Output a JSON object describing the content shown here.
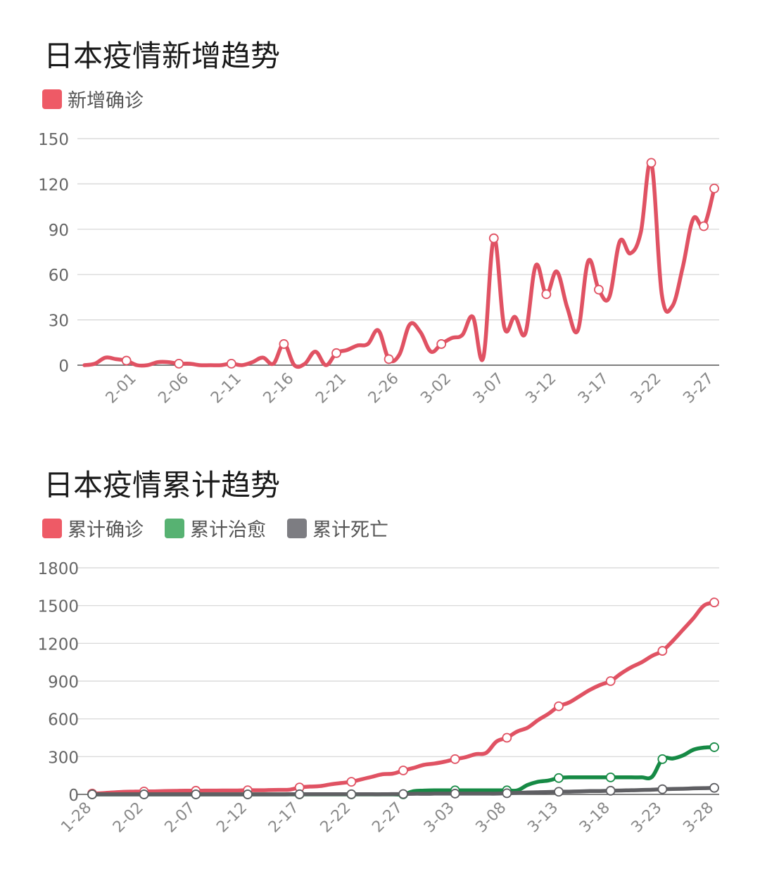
{
  "charts": [
    {
      "title": "日本疫情新增趋势",
      "legend": [
        {
          "label": "新增确诊",
          "color": "#ee5a66"
        }
      ]
    },
    {
      "title": "日本疫情累计趋势",
      "legend": [
        {
          "label": "累计确诊",
          "color": "#ee5a66"
        },
        {
          "label": "累计治愈",
          "color": "#57b272"
        },
        {
          "label": "累计死亡",
          "color": "#7d7d82"
        }
      ]
    }
  ],
  "chart_data": [
    {
      "type": "line",
      "title": "日本疫情新增趋势",
      "xlabel": "",
      "ylabel": "",
      "ylim": [
        0,
        150
      ],
      "yticks": [
        "0",
        "30",
        "60",
        "90",
        "120",
        "150"
      ],
      "xtick_labels": [
        "2-01",
        "2-06",
        "2-11",
        "2-16",
        "2-21",
        "2-26",
        "3-02",
        "3-07",
        "3-12",
        "3-17",
        "3-22",
        "3-27"
      ],
      "xtick_positions": [
        5,
        10,
        15,
        20,
        25,
        30,
        35,
        40,
        45,
        50,
        55,
        60
      ],
      "marker_interval": 5,
      "marker_offset": 4,
      "grid": true,
      "legend_position": "top-left",
      "series": [
        {
          "name": "新增确诊",
          "color": "#e05263",
          "values": [
            0,
            1,
            5,
            4,
            3,
            0,
            0,
            2,
            2,
            1,
            1,
            0,
            0,
            0,
            1,
            0,
            2,
            5,
            1,
            14,
            0,
            1,
            9,
            0,
            8,
            10,
            13,
            14,
            23,
            4,
            7,
            27,
            22,
            9,
            14,
            18,
            20,
            32,
            5,
            84,
            25,
            32,
            21,
            66,
            47,
            62,
            38,
            23,
            69,
            50,
            45,
            82,
            74,
            88,
            134,
            47,
            39,
            65,
            97,
            92,
            117
          ]
        }
      ]
    },
    {
      "type": "line",
      "title": "日本疫情累计趋势",
      "xlabel": "",
      "ylabel": "",
      "ylim": [
        0,
        1800
      ],
      "yticks": [
        "0",
        "300",
        "600",
        "900",
        "1200",
        "1500",
        "1800"
      ],
      "xtick_labels": [
        "1-28",
        "2-02",
        "2-07",
        "2-12",
        "2-17",
        "2-22",
        "2-27",
        "3-03",
        "3-08",
        "3-13",
        "3-18",
        "3-23",
        "3-28"
      ],
      "xtick_positions": [
        0,
        5,
        10,
        15,
        20,
        25,
        30,
        35,
        40,
        45,
        50,
        55,
        60
      ],
      "marker_interval": 5,
      "marker_offset": 0,
      "grid": true,
      "legend_position": "top-left",
      "series": [
        {
          "name": "累计确诊",
          "color": "#e05263",
          "values": [
            7,
            10,
            15,
            20,
            22,
            23,
            24,
            26,
            28,
            29,
            29,
            30,
            30,
            31,
            31,
            33,
            33,
            34,
            36,
            37,
            55,
            62,
            66,
            80,
            90,
            100,
            120,
            140,
            160,
            165,
            190,
            210,
            235,
            245,
            260,
            280,
            295,
            320,
            330,
            420,
            450,
            500,
            530,
            590,
            640,
            700,
            730,
            780,
            830,
            870,
            900,
            960,
            1010,
            1050,
            1100,
            1140,
            1220,
            1310,
            1400,
            1500,
            1525
          ]
        },
        {
          "name": "累计治愈",
          "color": "#168a45",
          "values": [
            0,
            0,
            0,
            0,
            0,
            0,
            0,
            0,
            0,
            0,
            0,
            0,
            0,
            0,
            0,
            0,
            0,
            0,
            0,
            0,
            0,
            0,
            0,
            0,
            0,
            0,
            0,
            0,
            0,
            0,
            0,
            25,
            30,
            32,
            32,
            32,
            32,
            32,
            32,
            32,
            32,
            32,
            75,
            100,
            110,
            130,
            135,
            135,
            135,
            135,
            135,
            135,
            135,
            135,
            140,
            280,
            285,
            310,
            355,
            372,
            375
          ]
        },
        {
          "name": "累计死亡",
          "color": "#5f5f63",
          "values": [
            0,
            0,
            0,
            0,
            0,
            0,
            0,
            0,
            0,
            0,
            0,
            0,
            0,
            0,
            0,
            0,
            0,
            0,
            0,
            1,
            1,
            1,
            1,
            1,
            1,
            1,
            1,
            1,
            1,
            2,
            3,
            5,
            5,
            6,
            6,
            6,
            6,
            6,
            6,
            6,
            9,
            12,
            15,
            17,
            19,
            21,
            22,
            24,
            26,
            27,
            29,
            31,
            33,
            35,
            37,
            41,
            43,
            45,
            48,
            50,
            52
          ]
        }
      ]
    }
  ]
}
